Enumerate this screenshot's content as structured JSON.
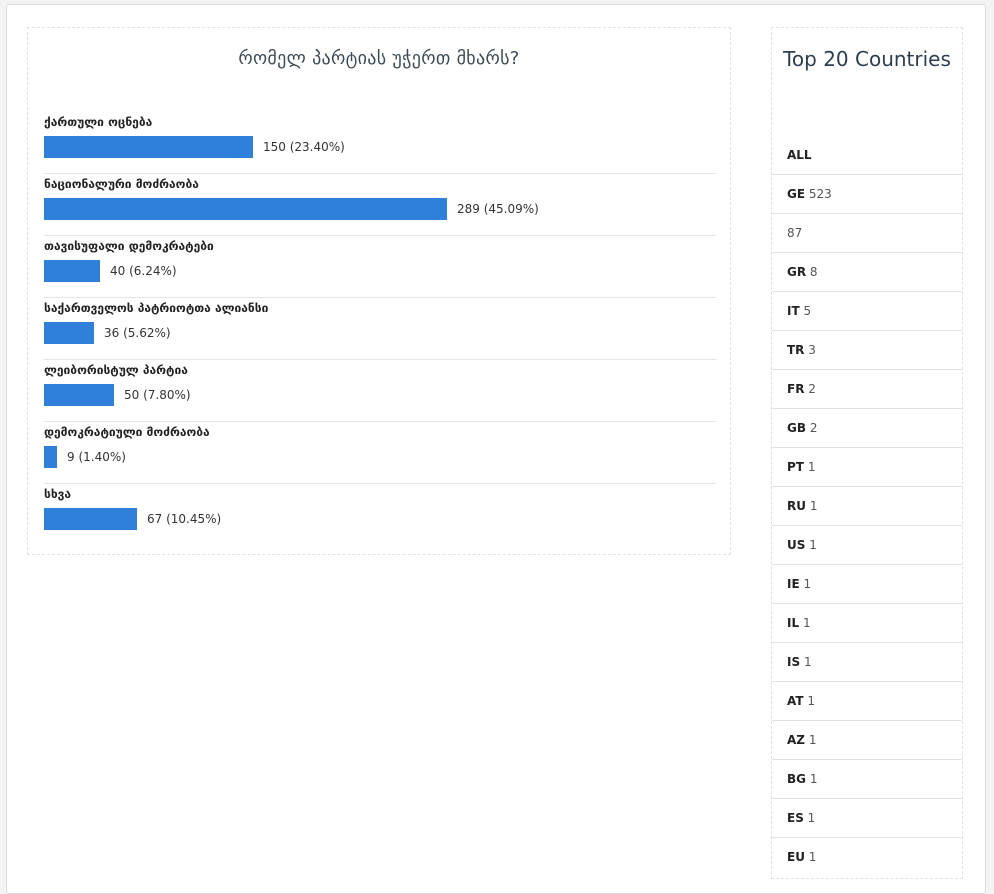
{
  "poll": {
    "title": "რომელ პარტიას უჭერთ მხარს?"
  },
  "chart_data": {
    "type": "bar",
    "orientation": "horizontal",
    "title": "რომელ პარტიას უჭერთ მხარს?",
    "categories": [
      "ქართული ოცნება",
      "ნაციონალური მოძრაობა",
      "თავისუფალი დემოკრატები",
      "საქართველოს პატრიოტთა ალიანსი",
      "ლეიბორისტულ პარტია",
      "დემოკრატიული მოძრაობა",
      "სხვა"
    ],
    "values": [
      150,
      289,
      40,
      36,
      50,
      9,
      67
    ],
    "percents": [
      "23.40%",
      "45.09%",
      "6.24%",
      "5.62%",
      "7.80%",
      "1.40%",
      "10.45%"
    ],
    "value_labels": [
      "150 (23.40%)",
      "289 (45.09%)",
      "40 (6.24%)",
      "36 (5.62%)",
      "50 (7.80%)",
      "9 (1.40%)",
      "67 (10.45%)"
    ],
    "bar_color": "#2f80da",
    "grid": false
  },
  "countries": {
    "title": "Top 20 Countries",
    "items": [
      {
        "code": "ALL",
        "count": ""
      },
      {
        "code": "GE",
        "count": "523"
      },
      {
        "code": "",
        "count": "87"
      },
      {
        "code": "GR",
        "count": "8"
      },
      {
        "code": "IT",
        "count": "5"
      },
      {
        "code": "TR",
        "count": "3"
      },
      {
        "code": "FR",
        "count": "2"
      },
      {
        "code": "GB",
        "count": "2"
      },
      {
        "code": "PT",
        "count": "1"
      },
      {
        "code": "RU",
        "count": "1"
      },
      {
        "code": "US",
        "count": "1"
      },
      {
        "code": "IE",
        "count": "1"
      },
      {
        "code": "IL",
        "count": "1"
      },
      {
        "code": "IS",
        "count": "1"
      },
      {
        "code": "AT",
        "count": "1"
      },
      {
        "code": "AZ",
        "count": "1"
      },
      {
        "code": "BG",
        "count": "1"
      },
      {
        "code": "ES",
        "count": "1"
      },
      {
        "code": "EU",
        "count": "1"
      }
    ]
  }
}
